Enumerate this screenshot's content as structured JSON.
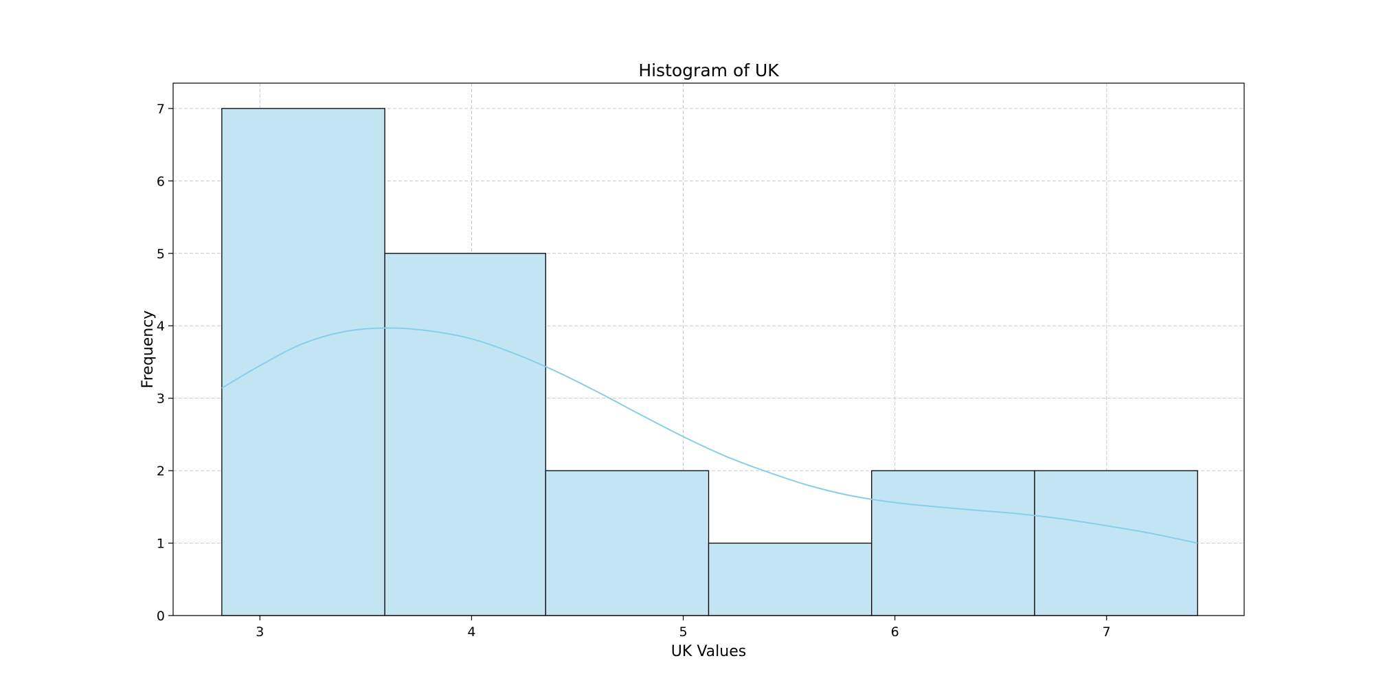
{
  "chart_data": {
    "type": "bar",
    "subtype": "histogram-with-kde",
    "title": "Histogram of UK",
    "xlabel": "UK Values",
    "ylabel": "Frequency",
    "xlim": [
      2.59,
      7.65
    ],
    "ylim": [
      0,
      7.35
    ],
    "xticks": [
      3,
      4,
      5,
      6,
      7
    ],
    "yticks": [
      0,
      1,
      2,
      3,
      4,
      5,
      6,
      7
    ],
    "grid": true,
    "bins": [
      {
        "x0": 2.82,
        "x1": 3.59,
        "count": 7
      },
      {
        "x0": 3.59,
        "x1": 4.35,
        "count": 5
      },
      {
        "x0": 4.35,
        "x1": 5.12,
        "count": 2
      },
      {
        "x0": 5.12,
        "x1": 5.89,
        "count": 1
      },
      {
        "x0": 5.89,
        "x1": 6.66,
        "count": 2
      },
      {
        "x0": 6.66,
        "x1": 7.43,
        "count": 2
      }
    ],
    "kde": {
      "x": [
        2.82,
        3.0,
        3.2,
        3.4,
        3.6,
        3.8,
        4.0,
        4.2,
        4.4,
        4.6,
        4.8,
        5.0,
        5.2,
        5.4,
        5.6,
        5.8,
        6.0,
        6.2,
        6.4,
        6.6,
        6.8,
        7.0,
        7.2,
        7.43
      ],
      "y": [
        3.14,
        3.45,
        3.75,
        3.92,
        3.97,
        3.93,
        3.82,
        3.62,
        3.37,
        3.08,
        2.77,
        2.47,
        2.2,
        1.98,
        1.79,
        1.65,
        1.56,
        1.5,
        1.45,
        1.4,
        1.33,
        1.24,
        1.14,
        1.0
      ]
    },
    "colors": {
      "bar_fill": "#c3e5f3",
      "bar_edge": "#000000",
      "kde_line": "#87ceeb",
      "grid": "#c8c8c8"
    }
  }
}
